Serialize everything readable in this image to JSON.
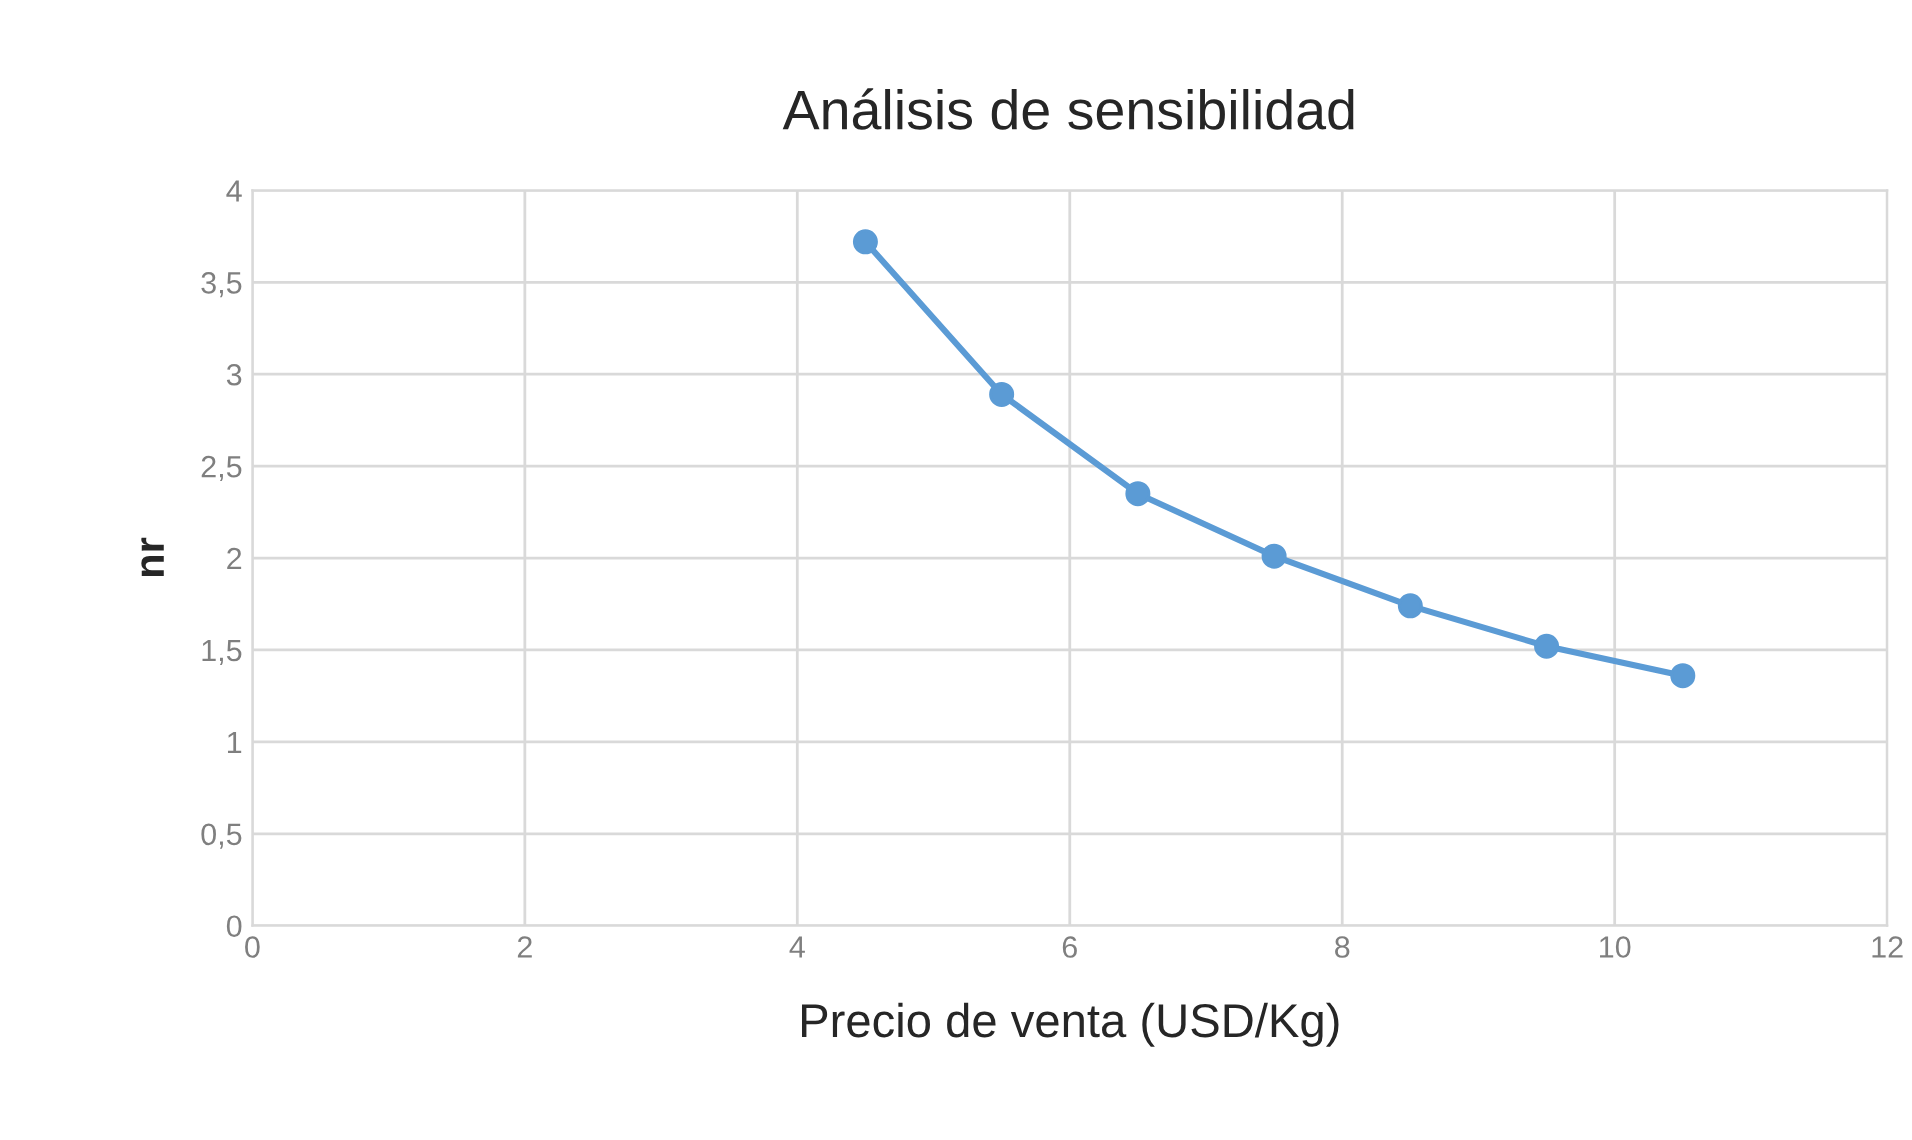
{
  "chart_data": {
    "type": "line",
    "title": "Análisis de sensibilidad",
    "xlabel": "Precio de venta (USD/Kg)",
    "ylabel": "nr",
    "x": [
      4.5,
      5.5,
      6.5,
      7.5,
      8.5,
      9.5,
      10.5
    ],
    "series": [
      {
        "color": "#5b9bd5",
        "values": [
          3.72,
          2.89,
          2.35,
          2.01,
          1.74,
          1.52,
          1.36
        ]
      }
    ],
    "xlim": [
      0,
      12
    ],
    "xticks": [
      0,
      2,
      4,
      6,
      8,
      10,
      12
    ],
    "ylim": [
      0,
      4
    ],
    "yticks": [
      0,
      {
        "value": 0.5,
        "label": "0,5"
      },
      1,
      {
        "value": 1.5,
        "label": "1,5"
      },
      2,
      {
        "value": 2.5,
        "label": "2,5"
      },
      3,
      {
        "value": 3.5,
        "label": "3,5"
      },
      4
    ],
    "grid": true,
    "marker": "circle",
    "line_style": "solid",
    "legend": false
  }
}
